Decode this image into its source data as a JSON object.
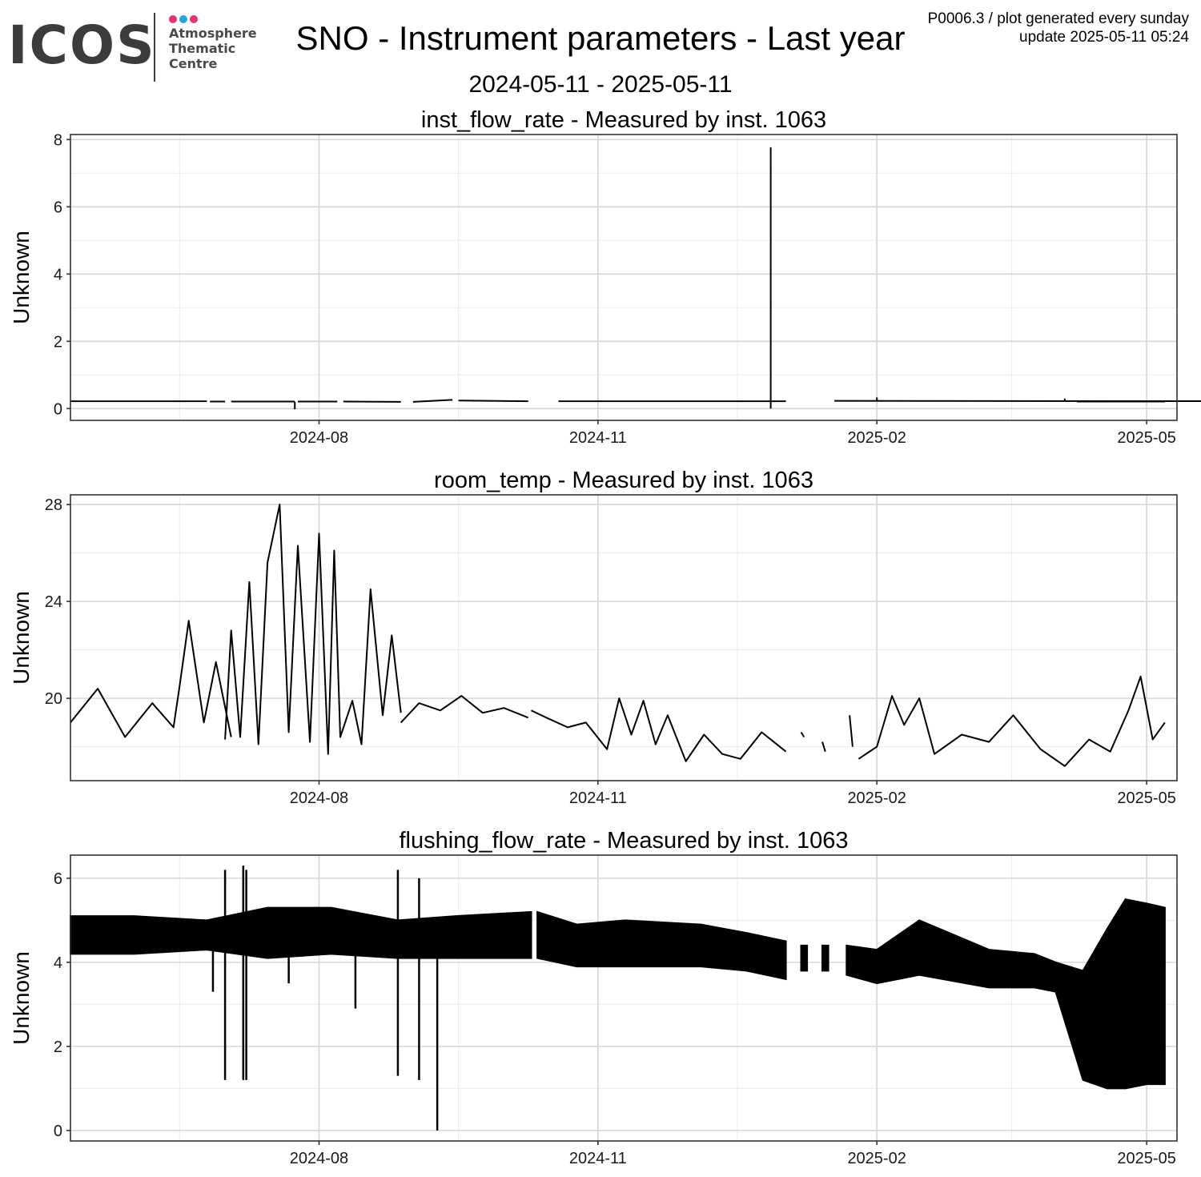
{
  "header": {
    "logo": {
      "wordmark": "ICOS",
      "lines": [
        "Atmosphere",
        "Thematic",
        "Centre"
      ],
      "dot_colors": [
        "#e6336f",
        "#2aa3dc",
        "#e6336f"
      ],
      "wordmark_color": "#3c3c3c"
    },
    "title": "SNO - Instrument parameters - Last year",
    "subtitle": "2024-05-11 - 2025-05-11",
    "meta_line1": "P0006.3 / plot generated every sunday",
    "meta_line2": "update  2025-05-11 05:24"
  },
  "chart_data": [
    {
      "type": "line",
      "title": "inst_flow_rate - Measured by inst. 1063",
      "ylabel": "Unknown",
      "xlabel": "",
      "xlim": [
        "2024-05-11",
        "2025-05-11"
      ],
      "ylim": [
        -0.35,
        8.15
      ],
      "x_ticks": [
        "2024-08",
        "2024-11",
        "2025-02",
        "2025-05"
      ],
      "y_ticks": [
        0,
        2,
        4,
        6,
        8
      ],
      "grid": true,
      "line_color": "#000000",
      "series": [
        {
          "x": [
            "2024-05-11",
            "2024-06-25"
          ],
          "y": [
            0.22,
            0.22
          ]
        },
        {
          "x": [
            "2024-06-26",
            "2024-07-01"
          ],
          "y": [
            0.21,
            0.21
          ]
        },
        {
          "x": [
            "2024-07-03",
            "2024-07-24"
          ],
          "y": [
            0.21,
            0.21
          ]
        },
        {
          "x": [
            "2024-07-24",
            "2024-07-24"
          ],
          "y": [
            0.2,
            -0.02
          ]
        },
        {
          "x": [
            "2024-07-25",
            "2024-08-07"
          ],
          "y": [
            0.21,
            0.21
          ]
        },
        {
          "x": [
            "2024-08-09",
            "2024-08-28"
          ],
          "y": [
            0.21,
            0.2
          ]
        },
        {
          "x": [
            "2024-09-01",
            "2024-09-14"
          ],
          "y": [
            0.2,
            0.26
          ]
        },
        {
          "x": [
            "2024-09-16",
            "2024-10-09"
          ],
          "y": [
            0.24,
            0.22
          ]
        },
        {
          "x": [
            "2024-10-19",
            "2024-12-28"
          ],
          "y": [
            0.22,
            0.22
          ]
        },
        {
          "x": [
            "2024-12-28",
            "2024-12-28",
            "2024-12-28"
          ],
          "y": [
            0.22,
            7.75,
            0.0
          ]
        },
        {
          "x": [
            "2024-12-28",
            "2025-01-02"
          ],
          "y": [
            0.22,
            0.22
          ]
        },
        {
          "x": [
            "2025-01-18",
            "2025-06-04"
          ],
          "y": [
            0.23,
            0.22
          ]
        },
        {
          "x": [
            "2025-02-01",
            "2025-02-01"
          ],
          "y": [
            0.23,
            0.33
          ]
        },
        {
          "x": [
            "2025-04-04",
            "2025-04-04"
          ],
          "y": [
            0.22,
            0.3
          ]
        },
        {
          "x": [
            "2025-04-08",
            "2025-05-07"
          ],
          "y": [
            0.21,
            0.21
          ]
        }
      ]
    },
    {
      "type": "line",
      "title": "room_temp - Measured by inst. 1063",
      "ylabel": "Unknown",
      "xlabel": "",
      "xlim": [
        "2024-05-11",
        "2025-05-11"
      ],
      "ylim": [
        16.6,
        28.4
      ],
      "x_ticks": [
        "2024-08",
        "2024-11",
        "2025-02",
        "2025-05"
      ],
      "y_ticks": [
        20,
        24,
        28
      ],
      "grid": true,
      "line_color": "#000000",
      "series": [
        {
          "x": [
            "2024-05-11",
            "2024-05-20",
            "2024-05-29",
            "2024-06-07",
            "2024-06-14",
            "2024-06-16",
            "2024-06-19",
            "2024-06-24",
            "2024-06-28",
            "2024-07-03"
          ],
          "y": [
            19.0,
            20.4,
            18.4,
            19.8,
            18.8,
            20.5,
            23.2,
            19.0,
            21.5,
            18.4
          ]
        },
        {
          "x": [
            "2024-07-01",
            "2024-07-03",
            "2024-07-06",
            "2024-07-09",
            "2024-07-12",
            "2024-07-15",
            "2024-07-19",
            "2024-07-22",
            "2024-07-25",
            "2024-07-29",
            "2024-08-01",
            "2024-08-04",
            "2024-08-06",
            "2024-08-08",
            "2024-08-12",
            "2024-08-15",
            "2024-08-18",
            "2024-08-22",
            "2024-08-25",
            "2024-08-28"
          ],
          "y": [
            18.3,
            22.8,
            18.4,
            24.8,
            18.1,
            25.6,
            28.0,
            18.6,
            26.3,
            18.2,
            26.8,
            17.7,
            26.1,
            18.4,
            19.9,
            18.1,
            24.5,
            19.3,
            22.6,
            19.4
          ]
        },
        {
          "x": [
            "2024-08-28",
            "2024-09-03",
            "2024-09-10",
            "2024-09-17",
            "2024-09-24",
            "2024-10-01",
            "2024-10-09"
          ],
          "y": [
            19.0,
            19.8,
            19.5,
            20.1,
            19.4,
            19.6,
            19.2
          ]
        },
        {
          "x": [
            "2024-10-10",
            "2024-10-15",
            "2024-10-22",
            "2024-10-28",
            "2024-11-04",
            "2024-11-08",
            "2024-11-12",
            "2024-11-16",
            "2024-11-20",
            "2024-11-24",
            "2024-11-30",
            "2024-12-06",
            "2024-12-12",
            "2024-12-18",
            "2024-12-25",
            "2025-01-02"
          ],
          "y": [
            19.5,
            19.2,
            18.8,
            19.0,
            17.9,
            20.0,
            18.5,
            19.9,
            18.1,
            19.3,
            17.4,
            18.5,
            17.7,
            17.5,
            18.6,
            17.8
          ]
        },
        {
          "x": [
            "2025-01-07",
            "2025-01-08"
          ],
          "y": [
            18.6,
            18.4
          ]
        },
        {
          "x": [
            "2025-01-14",
            "2025-01-15"
          ],
          "y": [
            18.2,
            17.8
          ]
        },
        {
          "x": [
            "2025-01-23",
            "2025-01-24"
          ],
          "y": [
            19.3,
            18.0
          ]
        },
        {
          "x": [
            "2025-01-26",
            "2025-02-01",
            "2025-02-06",
            "2025-02-10",
            "2025-02-15",
            "2025-02-20",
            "2025-03-01",
            "2025-03-10",
            "2025-03-18",
            "2025-03-27",
            "2025-04-04",
            "2025-04-12",
            "2025-04-19",
            "2025-04-25",
            "2025-04-29",
            "2025-05-03",
            "2025-05-07"
          ],
          "y": [
            17.5,
            18.0,
            20.1,
            18.9,
            20.0,
            17.7,
            18.5,
            18.2,
            19.3,
            17.9,
            17.2,
            18.3,
            17.8,
            19.5,
            20.9,
            18.3,
            19.0
          ]
        }
      ]
    },
    {
      "type": "area",
      "title": "flushing_flow_rate - Measured by inst. 1063",
      "ylabel": "Unknown",
      "xlabel": "",
      "xlim": [
        "2024-05-11",
        "2025-05-11"
      ],
      "ylim": [
        -0.25,
        6.55
      ],
      "x_ticks": [
        "2024-08",
        "2024-11",
        "2025-02",
        "2025-05"
      ],
      "y_ticks": [
        0,
        2,
        4,
        6
      ],
      "grid": true,
      "band_color": "#000000",
      "bands": [
        {
          "x": [
            "2024-05-11",
            "2024-06-01",
            "2024-06-25",
            "2024-07-15",
            "2024-08-05",
            "2024-08-27",
            "2024-09-15",
            "2024-10-10"
          ],
          "ymin": [
            4.2,
            4.2,
            4.3,
            4.1,
            4.2,
            4.1,
            4.1,
            4.1
          ],
          "ymax": [
            5.1,
            5.1,
            5.0,
            5.3,
            5.3,
            5.0,
            5.1,
            5.2
          ]
        },
        {
          "x": [
            "2024-10-12",
            "2024-10-25",
            "2024-11-10",
            "2024-12-05",
            "2024-12-20",
            "2025-01-02"
          ],
          "ymin": [
            4.1,
            3.9,
            3.9,
            3.9,
            3.8,
            3.6
          ],
          "ymax": [
            5.2,
            4.9,
            5.0,
            4.9,
            4.7,
            4.5
          ]
        },
        {
          "x": [
            "2025-01-07",
            "2025-01-09"
          ],
          "ymin": [
            3.8,
            3.8
          ],
          "ymax": [
            4.4,
            4.4
          ]
        },
        {
          "x": [
            "2025-01-14",
            "2025-01-16"
          ],
          "ymin": [
            3.8,
            3.8
          ],
          "ymax": [
            4.4,
            4.4
          ]
        },
        {
          "x": [
            "2025-01-22",
            "2025-02-01",
            "2025-02-15",
            "2025-03-10",
            "2025-03-25",
            "2025-04-01"
          ],
          "ymin": [
            3.7,
            3.5,
            3.7,
            3.4,
            3.4,
            3.3
          ],
          "ymax": [
            4.4,
            4.3,
            5.0,
            4.3,
            4.2,
            4.0
          ]
        },
        {
          "x": [
            "2025-04-01",
            "2025-04-10",
            "2025-04-18",
            "2025-04-24",
            "2025-05-01",
            "2025-05-07"
          ],
          "ymin": [
            3.3,
            1.2,
            1.0,
            1.0,
            1.1,
            1.1
          ],
          "ymax": [
            4.0,
            3.8,
            4.8,
            5.5,
            5.4,
            5.3
          ]
        }
      ],
      "spikes": [
        {
          "x": "2024-06-27",
          "ymin": 3.3,
          "ymax": 4.3
        },
        {
          "x": "2024-07-01",
          "ymin": 1.2,
          "ymax": 6.2
        },
        {
          "x": "2024-07-07",
          "ymin": 1.2,
          "ymax": 6.3
        },
        {
          "x": "2024-07-08",
          "ymin": 1.2,
          "ymax": 6.2
        },
        {
          "x": "2024-07-22",
          "ymin": 3.5,
          "ymax": 4.5
        },
        {
          "x": "2024-08-13",
          "ymin": 2.9,
          "ymax": 4.6
        },
        {
          "x": "2024-08-27",
          "ymin": 1.3,
          "ymax": 6.2
        },
        {
          "x": "2024-09-03",
          "ymin": 1.2,
          "ymax": 6.0
        },
        {
          "x": "2024-09-09",
          "ymin": 0.0,
          "ymax": 4.8
        }
      ]
    }
  ]
}
